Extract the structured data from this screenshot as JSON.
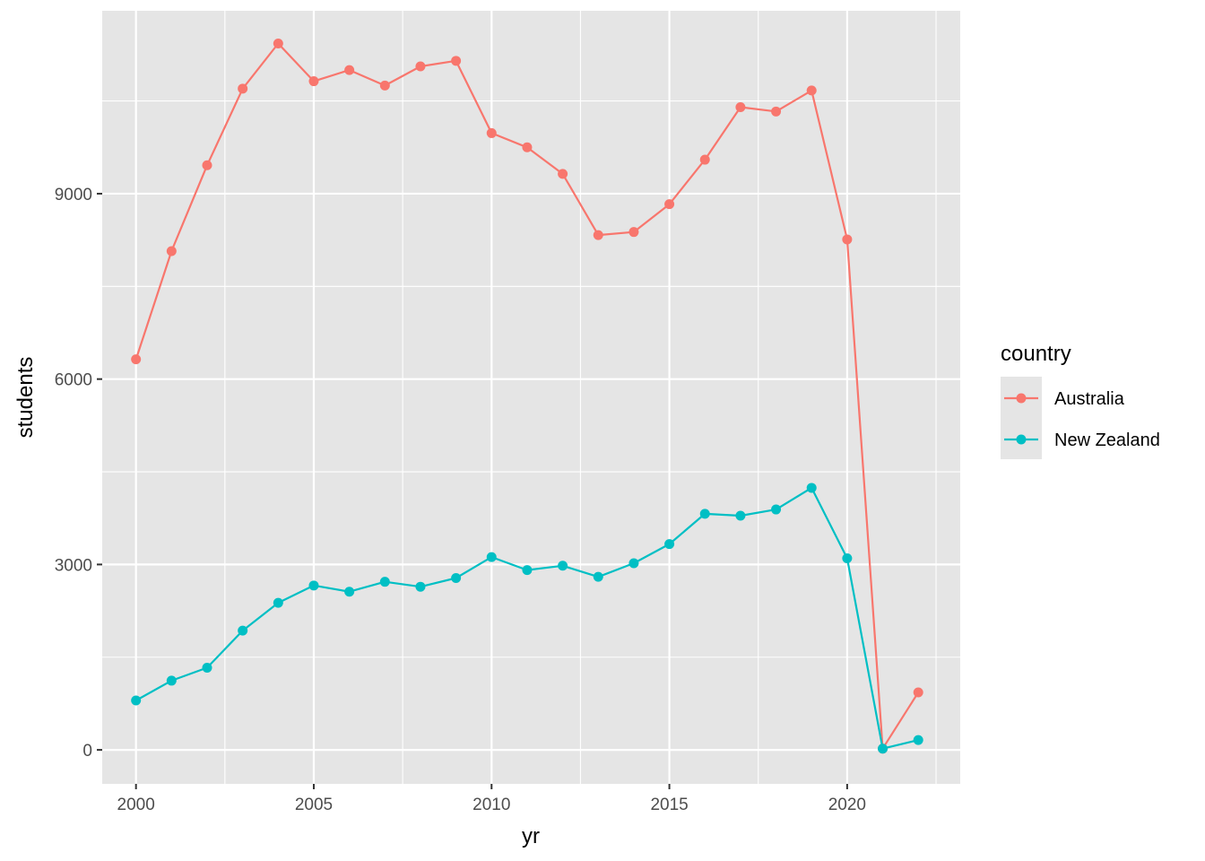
{
  "chart_data": {
    "type": "line",
    "x": [
      2000,
      2001,
      2002,
      2003,
      2004,
      2005,
      2006,
      2007,
      2008,
      2009,
      2010,
      2011,
      2012,
      2013,
      2014,
      2015,
      2016,
      2017,
      2018,
      2019,
      2020,
      2021,
      2022
    ],
    "series": [
      {
        "name": "Australia",
        "color": "#F8766D",
        "values": [
          6320,
          8070,
          9460,
          10700,
          11430,
          10820,
          11000,
          10750,
          11060,
          11150,
          9980,
          9750,
          9320,
          8330,
          8380,
          8830,
          9550,
          10400,
          10330,
          10670,
          8260,
          20,
          930
        ]
      },
      {
        "name": "New Zealand",
        "color": "#00BFC4",
        "values": [
          800,
          1120,
          1330,
          1930,
          2380,
          2660,
          2560,
          2720,
          2640,
          2780,
          3120,
          2910,
          2980,
          2800,
          3020,
          3330,
          3820,
          3790,
          3890,
          4240,
          3100,
          20,
          160
        ]
      }
    ],
    "xlabel": "yr",
    "ylabel": "students",
    "xlim": [
      1999.05,
      2023.18
    ],
    "ylim": [
      -550,
      11960
    ],
    "xticks": [
      2000,
      2005,
      2010,
      2015,
      2020
    ],
    "yticks": [
      0,
      3000,
      6000,
      9000
    ],
    "grid": true,
    "legend": {
      "title": "country",
      "placement": "right",
      "entries": [
        "Australia",
        "New Zealand"
      ]
    },
    "colors": {
      "panel": "#E5E5E5",
      "grid": "#FFFFFF",
      "tick_text": "#4D4D4D"
    }
  }
}
